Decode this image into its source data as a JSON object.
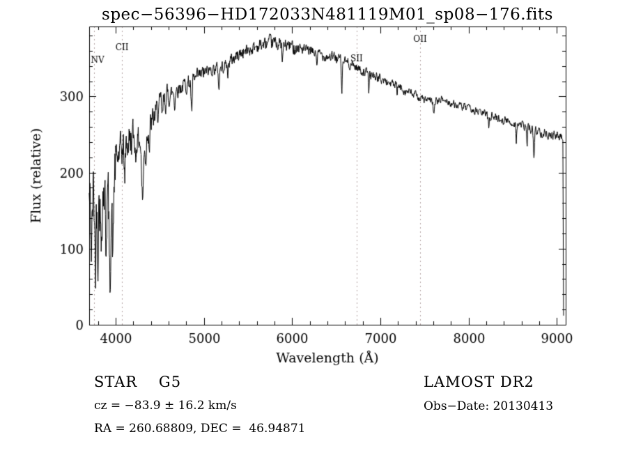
{
  "chart_data": {
    "type": "line",
    "title": "spec−56396−HD172033N481119M01_sp08−176.fits",
    "xlabel": "Wavelength (Å)",
    "ylabel": "Flux (relative)",
    "xlim": [
      3700,
      9100
    ],
    "ylim": [
      0,
      392
    ],
    "xticks": [
      4000,
      5000,
      6000,
      7000,
      8000,
      9000
    ],
    "yticks": [
      0,
      100,
      200,
      300
    ],
    "x_minor_step": 200,
    "y_minor_step": 20,
    "grid": false,
    "legend": "none",
    "line_color": "#000000",
    "marker_line_color": "#b0a0a0",
    "marker_lines": [
      {
        "label": "NV",
        "wavelength": 3752,
        "label_flux": 344
      },
      {
        "label": "CII",
        "wavelength": 4072,
        "label_flux": 361
      },
      {
        "label": "SII",
        "wavelength": 6730,
        "label_flux": 346
      },
      {
        "label": "OII",
        "wavelength": 7450,
        "label_flux": 372
      }
    ],
    "spectrum": {
      "sample_step": 4,
      "noise_seed": 42,
      "envelope": [
        [
          3700,
          165
        ],
        [
          3720,
          150
        ],
        [
          3745,
          172
        ],
        [
          3780,
          160
        ],
        [
          3810,
          168
        ],
        [
          3845,
          175
        ],
        [
          3880,
          180
        ],
        [
          3910,
          172
        ],
        [
          3940,
          150
        ],
        [
          3965,
          180
        ],
        [
          3990,
          205
        ],
        [
          4020,
          218
        ],
        [
          4060,
          228
        ],
        [
          4100,
          235
        ],
        [
          4150,
          242
        ],
        [
          4200,
          246
        ],
        [
          4260,
          243
        ],
        [
          4320,
          248
        ],
        [
          4400,
          263
        ],
        [
          4500,
          287
        ],
        [
          4600,
          301
        ],
        [
          4700,
          310
        ],
        [
          4800,
          316
        ],
        [
          4900,
          322
        ],
        [
          5000,
          331
        ],
        [
          5100,
          336
        ],
        [
          5200,
          338
        ],
        [
          5300,
          347
        ],
        [
          5400,
          356
        ],
        [
          5500,
          361
        ],
        [
          5600,
          366
        ],
        [
          5700,
          369
        ],
        [
          5800,
          371
        ],
        [
          5900,
          367
        ],
        [
          6000,
          366
        ],
        [
          6100,
          363
        ],
        [
          6200,
          359
        ],
        [
          6300,
          356
        ],
        [
          6400,
          353
        ],
        [
          6500,
          351
        ],
        [
          6600,
          346
        ],
        [
          6700,
          341
        ],
        [
          6800,
          333
        ],
        [
          6900,
          329
        ],
        [
          7000,
          323
        ],
        [
          7100,
          318
        ],
        [
          7200,
          313
        ],
        [
          7300,
          307
        ],
        [
          7400,
          301
        ],
        [
          7500,
          296
        ],
        [
          7600,
          293
        ],
        [
          7700,
          296
        ],
        [
          7800,
          291
        ],
        [
          7900,
          287
        ],
        [
          8000,
          284
        ],
        [
          8100,
          280
        ],
        [
          8200,
          277
        ],
        [
          8300,
          273
        ],
        [
          8400,
          269
        ],
        [
          8500,
          265
        ],
        [
          8600,
          262
        ],
        [
          8700,
          258
        ],
        [
          8800,
          254
        ],
        [
          8900,
          251
        ],
        [
          9000,
          248
        ],
        [
          9050,
          246
        ],
        [
          9068,
          244
        ]
      ],
      "noise_regions": [
        [
          3700,
          3905,
          48
        ],
        [
          3905,
          4005,
          40
        ],
        [
          4005,
          4205,
          24
        ],
        [
          4205,
          4605,
          17
        ],
        [
          4605,
          5005,
          11
        ],
        [
          5005,
          5305,
          8
        ],
        [
          5305,
          6105,
          9
        ],
        [
          6105,
          6705,
          7
        ],
        [
          6705,
          7405,
          6
        ],
        [
          7405,
          8205,
          5
        ],
        [
          8205,
          9100,
          6
        ]
      ],
      "absorption_lines": [
        [
          3727,
          55,
          7
        ],
        [
          3770,
          85,
          6
        ],
        [
          3798,
          60,
          5
        ],
        [
          3835,
          75,
          6
        ],
        [
          3889,
          70,
          6
        ],
        [
          3934,
          105,
          7
        ],
        [
          3969,
          95,
          7
        ],
        [
          4102,
          42,
          6
        ],
        [
          4227,
          28,
          5
        ],
        [
          4305,
          82,
          11
        ],
        [
          4341,
          40,
          6
        ],
        [
          4383,
          28,
          5
        ],
        [
          4530,
          22,
          5
        ],
        [
          4668,
          20,
          5
        ],
        [
          4861,
          45,
          6
        ],
        [
          5170,
          26,
          6
        ],
        [
          5270,
          18,
          5
        ],
        [
          5890,
          25,
          5
        ],
        [
          6280,
          14,
          4
        ],
        [
          6563,
          45,
          5
        ],
        [
          6870,
          22,
          5
        ],
        [
          7190,
          12,
          4
        ],
        [
          7605,
          18,
          6
        ],
        [
          8230,
          14,
          5
        ],
        [
          8540,
          22,
          4
        ],
        [
          8662,
          28,
          4
        ],
        [
          8740,
          38,
          6
        ]
      ],
      "final_drop": [
        9076,
        12
      ]
    }
  },
  "annotations": {
    "star_class": "STAR    G5",
    "survey": "LAMOST DR2",
    "cz": "cz = −83.9 ± 16.2 km/s",
    "obs_date": "Obs−Date: 20130413",
    "ra_dec": "RA = 260.68809, DEC =  46.94871"
  }
}
